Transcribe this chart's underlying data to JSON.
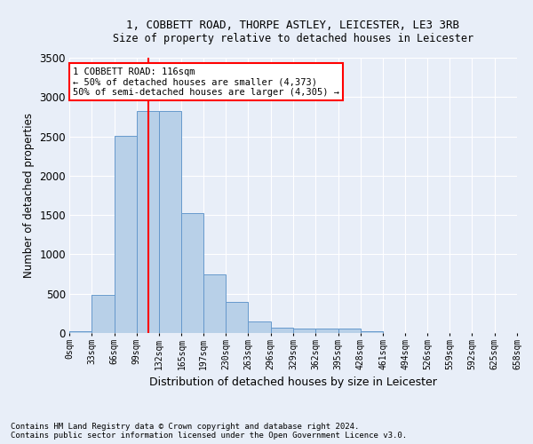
{
  "title1": "1, COBBETT ROAD, THORPE ASTLEY, LEICESTER, LE3 3RB",
  "title2": "Size of property relative to detached houses in Leicester",
  "xlabel": "Distribution of detached houses by size in Leicester",
  "ylabel": "Number of detached properties",
  "footnote1": "Contains HM Land Registry data © Crown copyright and database right 2024.",
  "footnote2": "Contains public sector information licensed under the Open Government Licence v3.0.",
  "bar_color": "#b8d0e8",
  "bar_edge_color": "#6699cc",
  "background_color": "#e8eef8",
  "vline_x": 116,
  "vline_color": "red",
  "annotation_line1": "1 COBBETT ROAD: 116sqm",
  "annotation_line2": "← 50% of detached houses are smaller (4,373)",
  "annotation_line3": "50% of semi-detached houses are larger (4,305) →",
  "annotation_box_color": "white",
  "annotation_box_edge_color": "red",
  "bin_edges": [
    0,
    33,
    66,
    99,
    132,
    165,
    197,
    230,
    263,
    296,
    329,
    362,
    395,
    428,
    461,
    494,
    526,
    559,
    592,
    625,
    658
  ],
  "bar_heights": [
    25,
    480,
    2510,
    2820,
    2820,
    1520,
    750,
    390,
    145,
    70,
    55,
    55,
    55,
    20,
    0,
    0,
    0,
    0,
    0,
    0
  ],
  "ylim": [
    0,
    3500
  ],
  "xlim": [
    0,
    658
  ],
  "yticks": [
    0,
    500,
    1000,
    1500,
    2000,
    2500,
    3000,
    3500
  ]
}
